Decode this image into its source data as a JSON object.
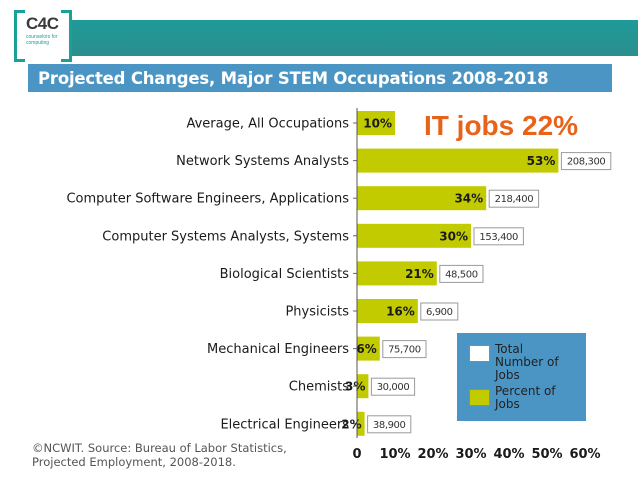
{
  "header": {
    "logo_text": "C4C",
    "logo_subtext": "counselors for computing",
    "brand_colors": {
      "teal": "#1e9a98",
      "blue": "#4b95c4",
      "bar": "#c1cb00",
      "annotation": "#e8631a"
    }
  },
  "chart_data": {
    "type": "bar",
    "orientation": "horizontal",
    "title": "Projected Changes, Major STEM Occupations 2008-2018",
    "categories": [
      "Average, All Occupations",
      "Network Systems Analysts",
      "Computer Software Engineers, Applications",
      "Computer Systems Analysts, Systems",
      "Biological Scientists",
      "Physicists",
      "Mechanical Engineers",
      "Chemists",
      "Electrical Engineers"
    ],
    "series": [
      {
        "name": "Percent of Jobs",
        "values": [
          10,
          53,
          34,
          30,
          21,
          16,
          6,
          3,
          2
        ],
        "labels": [
          "10%",
          "53%",
          "34%",
          "30%",
          "21%",
          "16%",
          "6%",
          "3%",
          "2%"
        ]
      },
      {
        "name": "Total Number of Jobs",
        "values": [
          null,
          208300,
          218400,
          153400,
          48500,
          6900,
          75700,
          30000,
          38900
        ],
        "labels": [
          "",
          "208,300",
          "218,400",
          "153,400",
          "48,500",
          "6,900",
          "75,700",
          "30,000",
          "38,900"
        ]
      }
    ],
    "xlim": [
      0,
      60
    ],
    "xticks": [
      "0",
      "10%",
      "20%",
      "30%",
      "40%",
      "50%",
      "60%"
    ],
    "legend": {
      "placement": "bottom-right",
      "entries": [
        {
          "label": "Total Number of Jobs",
          "color": "#ffffff"
        },
        {
          "label": "Percent of Jobs",
          "color": "#c1cb00"
        }
      ]
    },
    "annotation": "IT jobs 22%"
  },
  "source": "©NCWIT. Source: Bureau of Labor Statistics, Projected Employment, 2008-2018."
}
